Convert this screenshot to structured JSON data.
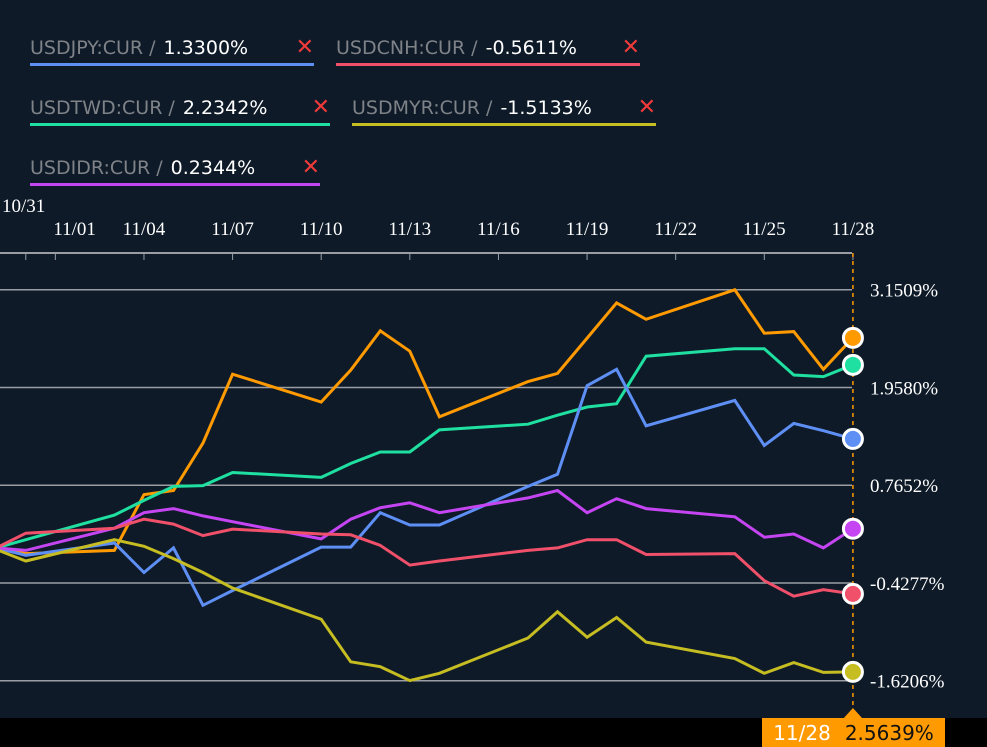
{
  "legend": [
    {
      "label": "USDJPY:CUR /",
      "value": "1.3300%",
      "color": "#5e8ff5",
      "close": "✕"
    },
    {
      "label": "USDCNH:CUR /",
      "value": "-0.5611%",
      "color": "#f0506a",
      "close": "✕"
    },
    {
      "label": "USDTWD:CUR /",
      "value": "2.2342%",
      "color": "#1fe0a0",
      "close": "✕"
    },
    {
      "label": "USDMYR:CUR /",
      "value": "-1.5133%",
      "color": "#c6bd22",
      "close": "✕"
    },
    {
      "label": "USDIDR:CUR /",
      "value": "0.2344%",
      "color": "#c545f2",
      "close": "✕"
    }
  ],
  "tooltip": {
    "date": "11/28",
    "value": "2.5639%"
  },
  "chart_data": {
    "type": "line",
    "title": "",
    "xlabel": "",
    "ylabel": "",
    "x_tick_labels": [
      "10/31",
      "11/01",
      "11/04",
      "11/07",
      "11/10",
      "11/13",
      "11/16",
      "11/19",
      "11/22",
      "11/25",
      "11/28"
    ],
    "y_tick_values": [
      3.1509,
      1.958,
      0.7652,
      -0.4277,
      -1.6206
    ],
    "y_tick_labels": [
      "3.1509%",
      "1.9580%",
      "0.7652%",
      "-0.4277%",
      "-1.6206%"
    ],
    "ylim": [
      -1.6206,
      3.1509
    ],
    "grid": "horizontal",
    "crosshair_date": "11/28",
    "x": [
      "10/30",
      "10/31",
      "11/03",
      "11/04",
      "11/05",
      "11/06",
      "11/07",
      "11/10",
      "11/11",
      "11/12",
      "11/13",
      "11/14",
      "11/17",
      "11/18",
      "11/19",
      "11/20",
      "11/21",
      "11/24",
      "11/25",
      "11/26",
      "11/27",
      "11/28"
    ],
    "series": [
      {
        "color": "#ff9a00",
        "values": [
          0,
          -0.07,
          -0.03,
          0.65,
          0.7,
          1.28,
          2.12,
          1.78,
          2.17,
          2.65,
          2.4,
          1.6,
          2.03,
          2.13,
          2.56,
          2.99,
          2.79,
          3.15,
          2.62,
          2.64,
          2.18,
          2.5639
        ]
      },
      {
        "name": "USDTWD:CUR",
        "color": "#1fe0a0",
        "values": [
          0,
          0.1,
          0.4,
          0.58,
          0.75,
          0.76,
          0.92,
          0.86,
          1.03,
          1.17,
          1.17,
          1.44,
          1.51,
          1.62,
          1.72,
          1.76,
          2.34,
          2.43,
          2.43,
          2.11,
          2.09,
          2.2342
        ]
      },
      {
        "name": "USDJPY:CUR",
        "color": "#5e8ff5",
        "values": [
          0,
          -0.09,
          0.06,
          -0.3,
          0.0,
          -0.7,
          -0.52,
          0.01,
          0.01,
          0.43,
          0.28,
          0.28,
          0.75,
          0.9,
          1.98,
          2.18,
          1.49,
          1.8,
          1.25,
          1.52,
          1.43,
          1.33
        ]
      },
      {
        "name": "USDIDR:CUR",
        "color": "#c545f2",
        "values": [
          0,
          -0.03,
          0.24,
          0.43,
          0.48,
          0.39,
          0.32,
          0.11,
          0.35,
          0.49,
          0.55,
          0.43,
          0.61,
          0.7,
          0.43,
          0.6,
          0.48,
          0.38,
          0.13,
          0.17,
          0.0,
          0.2344
        ]
      },
      {
        "name": "USDCNH:CUR",
        "color": "#f0506a",
        "values": [
          0,
          0.18,
          0.24,
          0.35,
          0.29,
          0.15,
          0.23,
          0.17,
          0.16,
          0.03,
          -0.21,
          -0.16,
          -0.03,
          0.0,
          0.1,
          0.1,
          -0.08,
          -0.07,
          -0.4,
          -0.59,
          -0.51,
          -0.5611
        ]
      },
      {
        "name": "USDMYR:CUR",
        "color": "#c6bd22",
        "values": [
          -0.02,
          -0.16,
          0.1,
          0.02,
          -0.13,
          -0.3,
          -0.49,
          -0.87,
          -1.39,
          -1.45,
          -1.62,
          -1.53,
          -1.1,
          -0.78,
          -1.09,
          -0.85,
          -1.15,
          -1.35,
          -1.53,
          -1.4,
          -1.52,
          -1.5133
        ]
      }
    ]
  }
}
